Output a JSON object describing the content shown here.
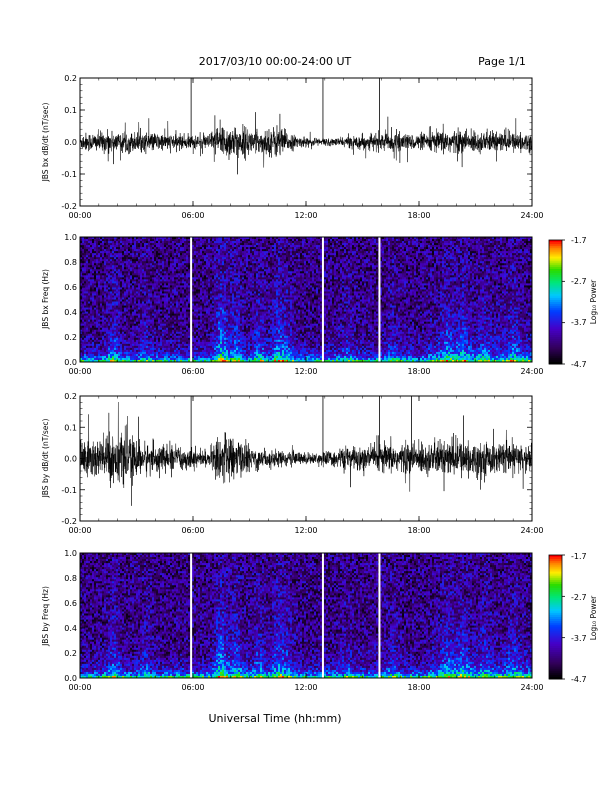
{
  "header": {
    "title": "2017/03/10  00:00-24:00 UT",
    "page_label": "Page 1/1"
  },
  "footer": {
    "xlabel": "Universal Time (hh:mm)"
  },
  "colorbar": {
    "label": "Log₁₀ Power",
    "ticks": [
      "-1.7",
      "-2.7",
      "-3.7",
      "-4.7"
    ],
    "range": [
      -4.7,
      -1.7
    ]
  },
  "chart_data": [
    {
      "type": "line",
      "title": "",
      "ylabel": "JBS bx dB/dt (nT/sec)",
      "xlim": [
        0,
        24
      ],
      "ylim": [
        -0.2,
        0.2
      ],
      "x_ticks": [
        "00:00",
        "06:00",
        "12:00",
        "18:00",
        "24:00"
      ],
      "y_ticks": [
        "0.2",
        "0.1",
        "0.0",
        "-0.1",
        "-0.2"
      ],
      "spikes_hours": [
        5.9,
        12.9,
        15.9
      ],
      "noise_envelope": [
        [
          0,
          0.025
        ],
        [
          2,
          0.03
        ],
        [
          5.8,
          0.02
        ],
        [
          6.8,
          0.02
        ],
        [
          7.5,
          0.05
        ],
        [
          8.5,
          0.045
        ],
        [
          9.5,
          0.03
        ],
        [
          10.5,
          0.045
        ],
        [
          11.5,
          0.015
        ],
        [
          13.5,
          0.01
        ],
        [
          15,
          0.02
        ],
        [
          16.5,
          0.025
        ],
        [
          18,
          0.02
        ],
        [
          19.5,
          0.035
        ],
        [
          21,
          0.03
        ],
        [
          24,
          0.025
        ]
      ]
    },
    {
      "type": "heatmap",
      "ylabel": "JBS bx Freq (Hz)",
      "xlim": [
        0,
        24
      ],
      "ylim": [
        0.0,
        1.0
      ],
      "x_ticks": [
        "00:00",
        "06:00",
        "12:00",
        "18:00",
        "24:00"
      ],
      "y_ticks": [
        "1.0",
        "0.8",
        "0.6",
        "0.4",
        "0.2",
        "0.0"
      ],
      "gap_lines_hours": [
        5.9,
        12.9,
        15.9
      ]
    },
    {
      "type": "line",
      "ylabel": "JBS by dB/dt (nT/sec)",
      "xlim": [
        0,
        24
      ],
      "ylim": [
        -0.2,
        0.2
      ],
      "x_ticks": [
        "00:00",
        "06:00",
        "12:00",
        "18:00",
        "24:00"
      ],
      "y_ticks": [
        "0.2",
        "0.1",
        "0.0",
        "-0.1",
        "-0.2"
      ],
      "spikes_hours": [
        5.9,
        12.9,
        15.9,
        17.6
      ],
      "noise_envelope": [
        [
          0,
          0.06
        ],
        [
          2,
          0.07
        ],
        [
          3.5,
          0.045
        ],
        [
          5.8,
          0.03
        ],
        [
          6.8,
          0.02
        ],
        [
          7.5,
          0.07
        ],
        [
          8.5,
          0.05
        ],
        [
          9.5,
          0.03
        ],
        [
          11,
          0.02
        ],
        [
          12.5,
          0.015
        ],
        [
          14,
          0.03
        ],
        [
          16,
          0.04
        ],
        [
          18,
          0.045
        ],
        [
          20,
          0.05
        ],
        [
          22,
          0.045
        ],
        [
          24,
          0.04
        ]
      ]
    },
    {
      "type": "heatmap",
      "ylabel": "JBS by Freq (Hz)",
      "xlim": [
        0,
        24
      ],
      "ylim": [
        0.0,
        1.0
      ],
      "x_ticks": [
        "00:00",
        "06:00",
        "12:00",
        "18:00",
        "24:00"
      ],
      "y_ticks": [
        "1.0",
        "0.8",
        "0.6",
        "0.4",
        "0.2",
        "0.0"
      ],
      "gap_lines_hours": [
        5.9,
        12.9,
        15.9
      ]
    }
  ]
}
